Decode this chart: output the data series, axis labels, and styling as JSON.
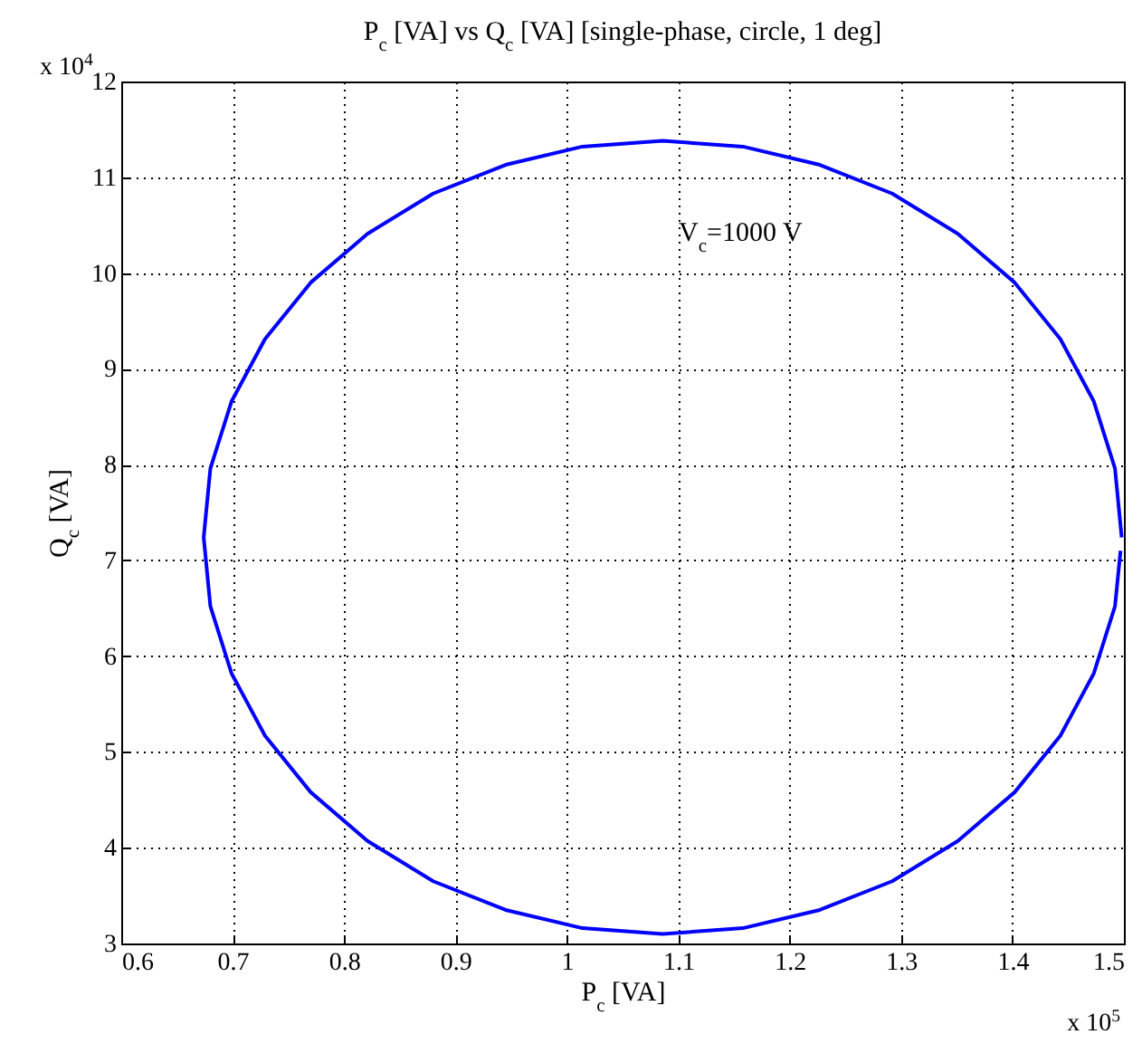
{
  "chart_data": {
    "type": "line",
    "title": "P$_{c}$ [VA] vs Q$_{c}$ [VA] [single-phase, circle, 1 deg]",
    "xlabel": "P$_{c}$ [VA]",
    "ylabel": "Q$_{c}$ [VA]",
    "annotations": [
      "V$_{c}$=1000 V",
      "x 10$^{4}$",
      "x 10$^{5}$"
    ],
    "xlim": [
      0.6,
      1.5
    ],
    "xticks": [
      0.6,
      0.7,
      0.8,
      0.9,
      1,
      1.1,
      1.2,
      1.3,
      1.4,
      1.5
    ],
    "ylim": [
      3,
      12
    ],
    "yticks": [
      3,
      4,
      5,
      6,
      7,
      8,
      9,
      10,
      11,
      12
    ],
    "grid": true,
    "marker": "none",
    "line_style": "solid",
    "series": [
      {
        "color": "#0000ff",
        "x": [
          1.498,
          1.492,
          1.473,
          1.443,
          1.402,
          1.351,
          1.292,
          1.227,
          1.158,
          1.086,
          1.014,
          0.945,
          0.88,
          0.821,
          0.77,
          0.729,
          0.699,
          0.68,
          0.674,
          0.68,
          0.699,
          0.729,
          0.77,
          0.821,
          0.88,
          0.945,
          1.014,
          1.086,
          1.158,
          1.227,
          1.292,
          1.351,
          1.402,
          1.443,
          1.473,
          1.492,
          1.497
        ],
        "values": [
          7.24,
          7.96,
          8.66,
          9.31,
          9.9,
          10.41,
          10.83,
          11.13,
          11.32,
          11.38,
          11.32,
          11.13,
          10.83,
          10.41,
          9.9,
          9.31,
          8.66,
          7.96,
          7.24,
          6.52,
          5.82,
          5.17,
          4.58,
          4.07,
          3.65,
          3.35,
          3.16,
          3.1,
          3.16,
          3.35,
          3.65,
          4.07,
          4.58,
          5.17,
          5.82,
          6.52,
          7.1
        ]
      }
    ]
  }
}
